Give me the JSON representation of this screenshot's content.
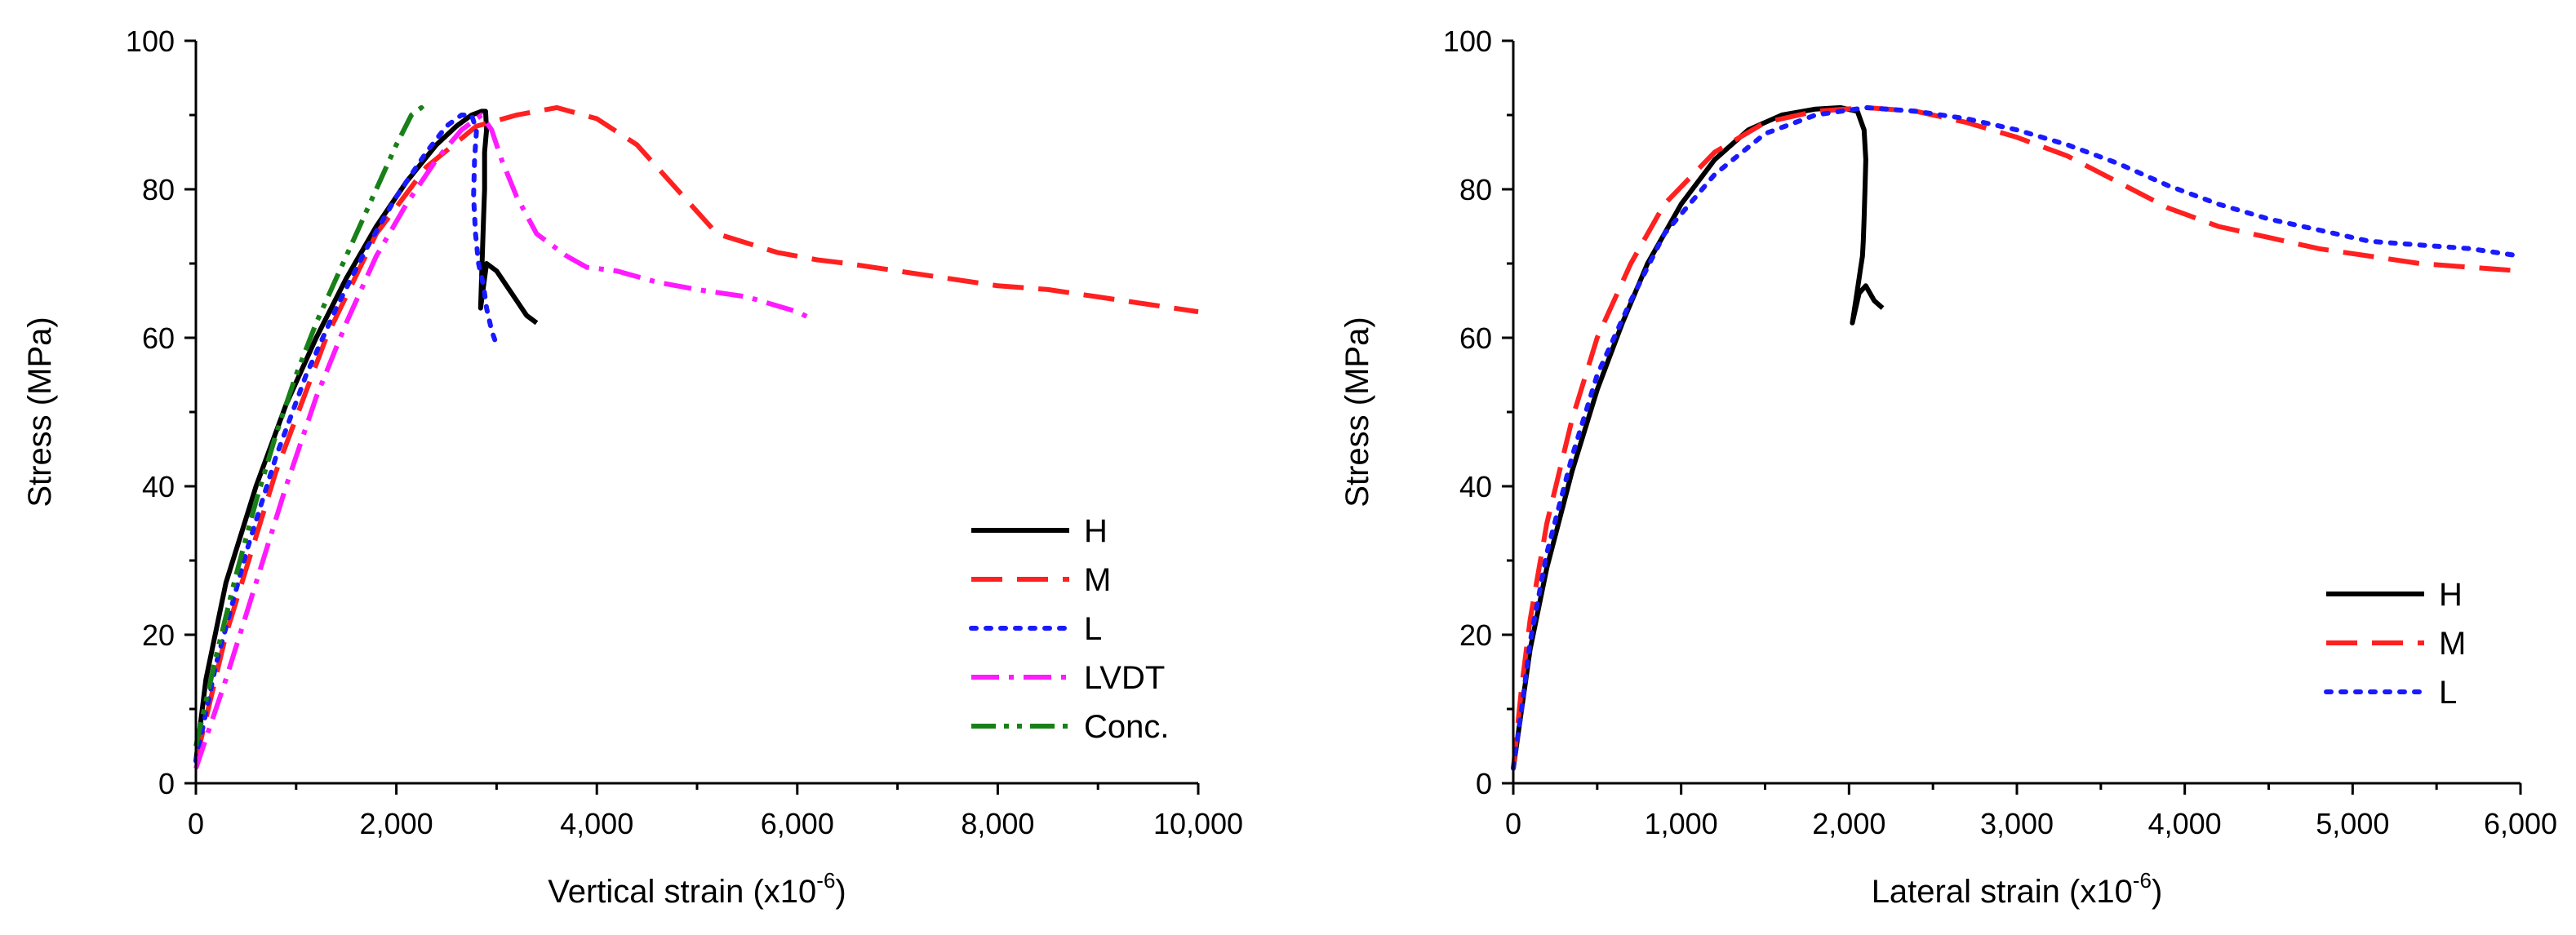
{
  "figure_title": "",
  "chart_data": [
    {
      "type": "line",
      "title": "",
      "xlabel": "Vertical strain (x10",
      "xlabel_exp": "-6",
      "xlabel_close": ")",
      "ylabel": "Stress (MPa)",
      "xlim": [
        0,
        10000
      ],
      "ylim": [
        0,
        100
      ],
      "xticks": [
        0,
        2000,
        4000,
        6000,
        8000,
        10000
      ],
      "xtick_labels": [
        "0",
        "2,000",
        "4,000",
        "6,000",
        "8,000",
        "10,000"
      ],
      "yticks": [
        0,
        20,
        40,
        60,
        80,
        100
      ],
      "ytick_labels": [
        "0",
        "20",
        "40",
        "60",
        "80",
        "100"
      ],
      "grid": false,
      "legend_position": "bottom-right",
      "series": [
        {
          "name": "H",
          "color": "#000000",
          "style": "solid",
          "x": [
            0,
            100,
            300,
            600,
            900,
            1200,
            1500,
            1800,
            2100,
            2400,
            2600,
            2750,
            2850,
            2890,
            2900,
            2880,
            2880,
            2870,
            2860,
            2850,
            2840,
            2900,
            3000,
            3100,
            3200,
            3300,
            3400
          ],
          "y": [
            3,
            14,
            27,
            40,
            51,
            60,
            68,
            75,
            81,
            86,
            88.5,
            90,
            90.5,
            90.5,
            88,
            85,
            80,
            76,
            72,
            68,
            64,
            70,
            69,
            67,
            65,
            63,
            62
          ]
        },
        {
          "name": "M",
          "color": "#ff2020",
          "style": "dashed",
          "x": [
            0,
            300,
            800,
            1300,
            1800,
            2300,
            2800,
            3200,
            3600,
            4000,
            4400,
            4800,
            5200,
            5800,
            6200,
            6500,
            7000,
            7500,
            8000,
            8500,
            9000,
            9500,
            10000
          ],
          "y": [
            3,
            20,
            42,
            60,
            74,
            83,
            88.5,
            90,
            91,
            89.5,
            86,
            80,
            74,
            71.5,
            70.5,
            70,
            69,
            68,
            67,
            66.5,
            65.5,
            64.5,
            63.5
          ]
        },
        {
          "name": "L",
          "color": "#1a1aff",
          "style": "dotted",
          "x": [
            0,
            200,
            500,
            800,
            1100,
            1400,
            1700,
            2000,
            2300,
            2500,
            2650,
            2750,
            2800,
            2780,
            2770,
            2790,
            2820,
            2870,
            2900,
            2950,
            3000
          ],
          "y": [
            3,
            16,
            31,
            44,
            55,
            64,
            72,
            79,
            85,
            88.5,
            90,
            90,
            88,
            84,
            79,
            74,
            70,
            67,
            64,
            61,
            59
          ]
        },
        {
          "name": "LVDT",
          "color": "#ff1aff",
          "style": "dashdot",
          "x": [
            0,
            300,
            600,
            900,
            1200,
            1500,
            1800,
            2100,
            2400,
            2650,
            2850,
            2950,
            3050,
            3200,
            3400,
            3700,
            3900,
            4200,
            4600,
            5000,
            5500,
            6000,
            6150
          ],
          "y": [
            2,
            14,
            27,
            40,
            52,
            62,
            71,
            78,
            84,
            88,
            90,
            88,
            84,
            79,
            74,
            71,
            69.5,
            69,
            67.5,
            66.5,
            65.5,
            63.5,
            62.5
          ]
        },
        {
          "name": "Conc.",
          "color": "#188018",
          "style": "dashdotdot",
          "x": [
            0,
            200,
            400,
            600,
            800,
            1000,
            1200,
            1400,
            1600,
            1800,
            2000,
            2150,
            2250,
            2300
          ],
          "y": [
            5,
            17,
            28,
            38,
            47,
            55,
            62,
            68,
            74,
            80,
            86,
            90,
            91,
            90
          ]
        }
      ]
    },
    {
      "type": "line",
      "title": "",
      "xlabel": "Lateral strain (x10",
      "xlabel_exp": "-6",
      "xlabel_close": ")",
      "ylabel": "Stress (MPa)",
      "xlim": [
        0,
        6000
      ],
      "ylim": [
        0,
        100
      ],
      "xticks": [
        0,
        1000,
        2000,
        3000,
        4000,
        5000,
        6000
      ],
      "xtick_labels": [
        "0",
        "1,000",
        "2,000",
        "3,000",
        "4,000",
        "5,000",
        "6,000"
      ],
      "yticks": [
        0,
        20,
        40,
        60,
        80,
        100
      ],
      "ytick_labels": [
        "0",
        "20",
        "40",
        "60",
        "80",
        "100"
      ],
      "grid": false,
      "legend_position": "bottom-right",
      "series": [
        {
          "name": "H",
          "color": "#000000",
          "style": "solid",
          "x": [
            0,
            50,
            100,
            200,
            350,
            500,
            650,
            800,
            1000,
            1200,
            1400,
            1600,
            1800,
            1950,
            2050,
            2090,
            2100,
            2095,
            2090,
            2085,
            2080,
            2070,
            2060,
            2040,
            2020,
            2060,
            2100,
            2150,
            2200
          ],
          "y": [
            2,
            10,
            18,
            29,
            42,
            53,
            62,
            70,
            78,
            84,
            88,
            90,
            90.8,
            91,
            90.5,
            88,
            84,
            80,
            76,
            73,
            71,
            69.5,
            68,
            65,
            62,
            66,
            67,
            65,
            64
          ]
        },
        {
          "name": "M",
          "color": "#ff2020",
          "style": "dashed",
          "x": [
            0,
            50,
            100,
            200,
            350,
            500,
            700,
            900,
            1200,
            1500,
            1800,
            2100,
            2400,
            2700,
            3000,
            3300,
            3600,
            3900,
            4200,
            4500,
            4800,
            5100,
            5400,
            5700,
            6000
          ],
          "y": [
            2,
            13,
            22,
            35,
            49,
            60,
            70,
            78,
            85,
            89,
            90.5,
            91,
            90.5,
            89,
            87,
            84.5,
            81,
            77.5,
            75,
            73.5,
            72,
            71,
            70,
            69.5,
            69
          ]
        },
        {
          "name": "L",
          "color": "#1a1aff",
          "style": "dotted",
          "x": [
            0,
            50,
            100,
            200,
            350,
            500,
            700,
            900,
            1200,
            1500,
            1800,
            2100,
            2400,
            2700,
            3000,
            3300,
            3600,
            3900,
            4200,
            4500,
            4800,
            5100,
            5400,
            5700,
            6000
          ],
          "y": [
            2,
            10,
            19,
            31,
            44,
            55,
            65,
            74,
            82,
            87.5,
            90,
            91,
            90.5,
            89.5,
            88,
            86,
            83.5,
            80.5,
            78,
            76,
            74.5,
            73,
            72.5,
            72,
            71
          ]
        }
      ]
    }
  ]
}
